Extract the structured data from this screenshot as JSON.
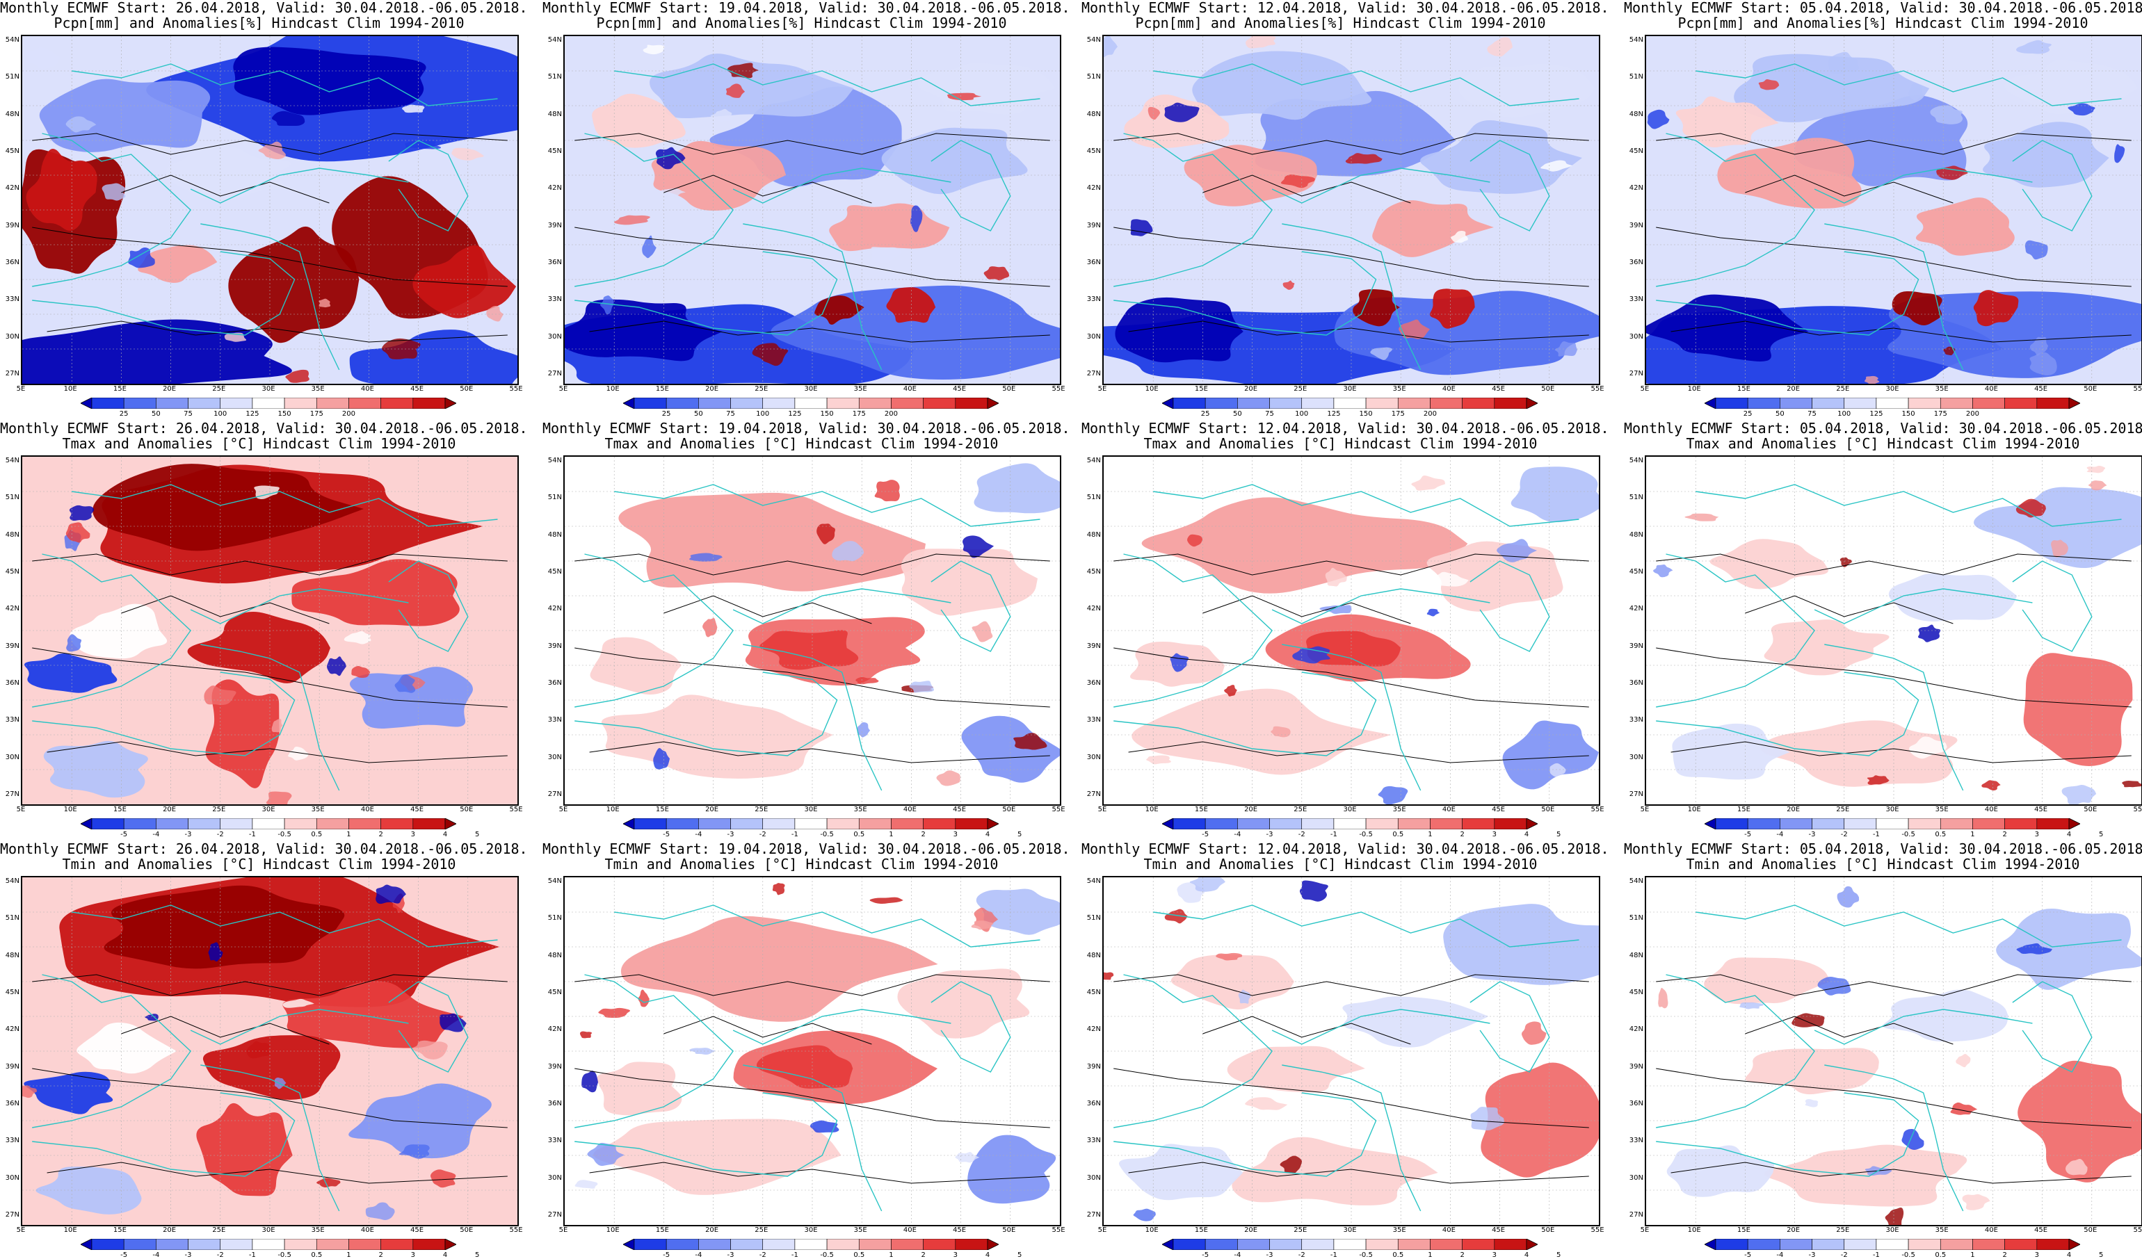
{
  "panels": [
    {
      "row": 0,
      "col": 0,
      "title1": "Monthly ECMWF Start: 26.04.2018, Valid: 30.04.2018.-06.05.2018.",
      "title2": "Pcpn[mm] and Anomalies[%] Hindcast Clim 1994-2010",
      "variable": "pcpn",
      "scheme": "pcpn_strong"
    },
    {
      "row": 0,
      "col": 1,
      "title1": "Monthly ECMWF Start: 19.04.2018, Valid: 30.04.2018.-06.05.2018.",
      "title2": "Pcpn[mm] and Anomalies[%] Hindcast Clim 1994-2010",
      "variable": "pcpn",
      "scheme": "pcpn_mixed"
    },
    {
      "row": 0,
      "col": 2,
      "title1": "Monthly ECMWF Start: 12.04.2018, Valid: 30.04.2018.-06.05.2018.",
      "title2": "Pcpn[mm] and Anomalies[%] Hindcast Clim 1994-2010",
      "variable": "pcpn",
      "scheme": "pcpn_mixed"
    },
    {
      "row": 0,
      "col": 3,
      "title1": "Monthly ECMWF Start: 05.04.2018, Valid: 30.04.2018.-06.05.2018.",
      "title2": "Pcpn[mm] and Anomalies[%] Hindcast Clim 1994-2010",
      "variable": "pcpn",
      "scheme": "pcpn_mixed"
    },
    {
      "row": 1,
      "col": 0,
      "title1": "Monthly ECMWF Start: 26.04.2018, Valid: 30.04.2018.-06.05.2018.",
      "title2": "Tmax and Anomalies [°C] Hindcast Clim 1994-2010",
      "variable": "tmax",
      "scheme": "temp_strong"
    },
    {
      "row": 1,
      "col": 1,
      "title1": "Monthly ECMWF Start: 19.04.2018, Valid: 30.04.2018.-06.05.2018.",
      "title2": "Tmax and Anomalies [°C] Hindcast Clim 1994-2010",
      "variable": "tmax",
      "scheme": "temp_mild"
    },
    {
      "row": 1,
      "col": 2,
      "title1": "Monthly ECMWF Start: 12.04.2018, Valid: 30.04.2018.-06.05.2018.",
      "title2": "Tmax and Anomalies [°C] Hindcast Clim 1994-2010",
      "variable": "tmax",
      "scheme": "temp_mild"
    },
    {
      "row": 1,
      "col": 3,
      "title1": "Monthly ECMWF Start: 05.04.2018, Valid: 30.04.2018.-06.05.2018.",
      "title2": "Tmax and Anomalies [°C] Hindcast Clim 1994-2010",
      "variable": "tmax",
      "scheme": "temp_weak"
    },
    {
      "row": 2,
      "col": 0,
      "title1": "Monthly ECMWF Start: 26.04.2018, Valid: 30.04.2018.-06.05.2018.",
      "title2": "Tmin and Anomalies [°C] Hindcast Clim 1994-2010",
      "variable": "tmin",
      "scheme": "temp_strong"
    },
    {
      "row": 2,
      "col": 1,
      "title1": "Monthly ECMWF Start: 19.04.2018, Valid: 30.04.2018.-06.05.2018.",
      "title2": "Tmin and Anomalies [°C] Hindcast Clim 1994-2010",
      "variable": "tmin",
      "scheme": "temp_mild"
    },
    {
      "row": 2,
      "col": 2,
      "title1": "Monthly ECMWF Start: 12.04.2018, Valid: 30.04.2018.-06.05.2018.",
      "title2": "Tmin and Anomalies [°C] Hindcast Clim 1994-2010",
      "variable": "tmin",
      "scheme": "temp_weak"
    },
    {
      "row": 2,
      "col": 3,
      "title1": "Monthly ECMWF Start: 05.04.2018, Valid: 30.04.2018.-06.05.2018.",
      "title2": "Tmin and Anomalies [°C] Hindcast Clim 1994-2010",
      "variable": "tmin",
      "scheme": "temp_weak"
    }
  ],
  "lat_labels": [
    "54N",
    "51N",
    "48N",
    "45N",
    "42N",
    "39N",
    "36N",
    "33N",
    "30N",
    "27N"
  ],
  "lon_labels": [
    "5E",
    "10E",
    "15E",
    "20E",
    "25E",
    "30E",
    "35E",
    "40E",
    "45E",
    "50E",
    "55E"
  ],
  "colorbars": {
    "pcpn": {
      "labels": [
        "25",
        "50",
        "75",
        "100",
        "125",
        "150",
        "175",
        "200"
      ],
      "colors": [
        "#0000b4",
        "#1e3ce6",
        "#506ef0",
        "#8296f5",
        "#b4c3fa",
        "#dce1fc",
        "#ffffff",
        "#fcd2d2",
        "#f5a0a0",
        "#f06e6e",
        "#e63c3c",
        "#c81414",
        "#960000"
      ]
    },
    "temp": {
      "labels": [
        "-5",
        "-4",
        "-3",
        "-2",
        "-1",
        "-0.5",
        "0.5",
        "1",
        "2",
        "3",
        "4",
        "5"
      ],
      "colors": [
        "#0000b4",
        "#1e3ce6",
        "#506ef0",
        "#8296f5",
        "#b4c3fa",
        "#dce1fc",
        "#ffffff",
        "#fcd2d2",
        "#f5a0a0",
        "#f06e6e",
        "#e63c3c",
        "#c81414",
        "#960000"
      ]
    }
  },
  "colors": {
    "coast": "#29c4c4",
    "contour": "#000000",
    "grid": "#b0b0b0"
  }
}
